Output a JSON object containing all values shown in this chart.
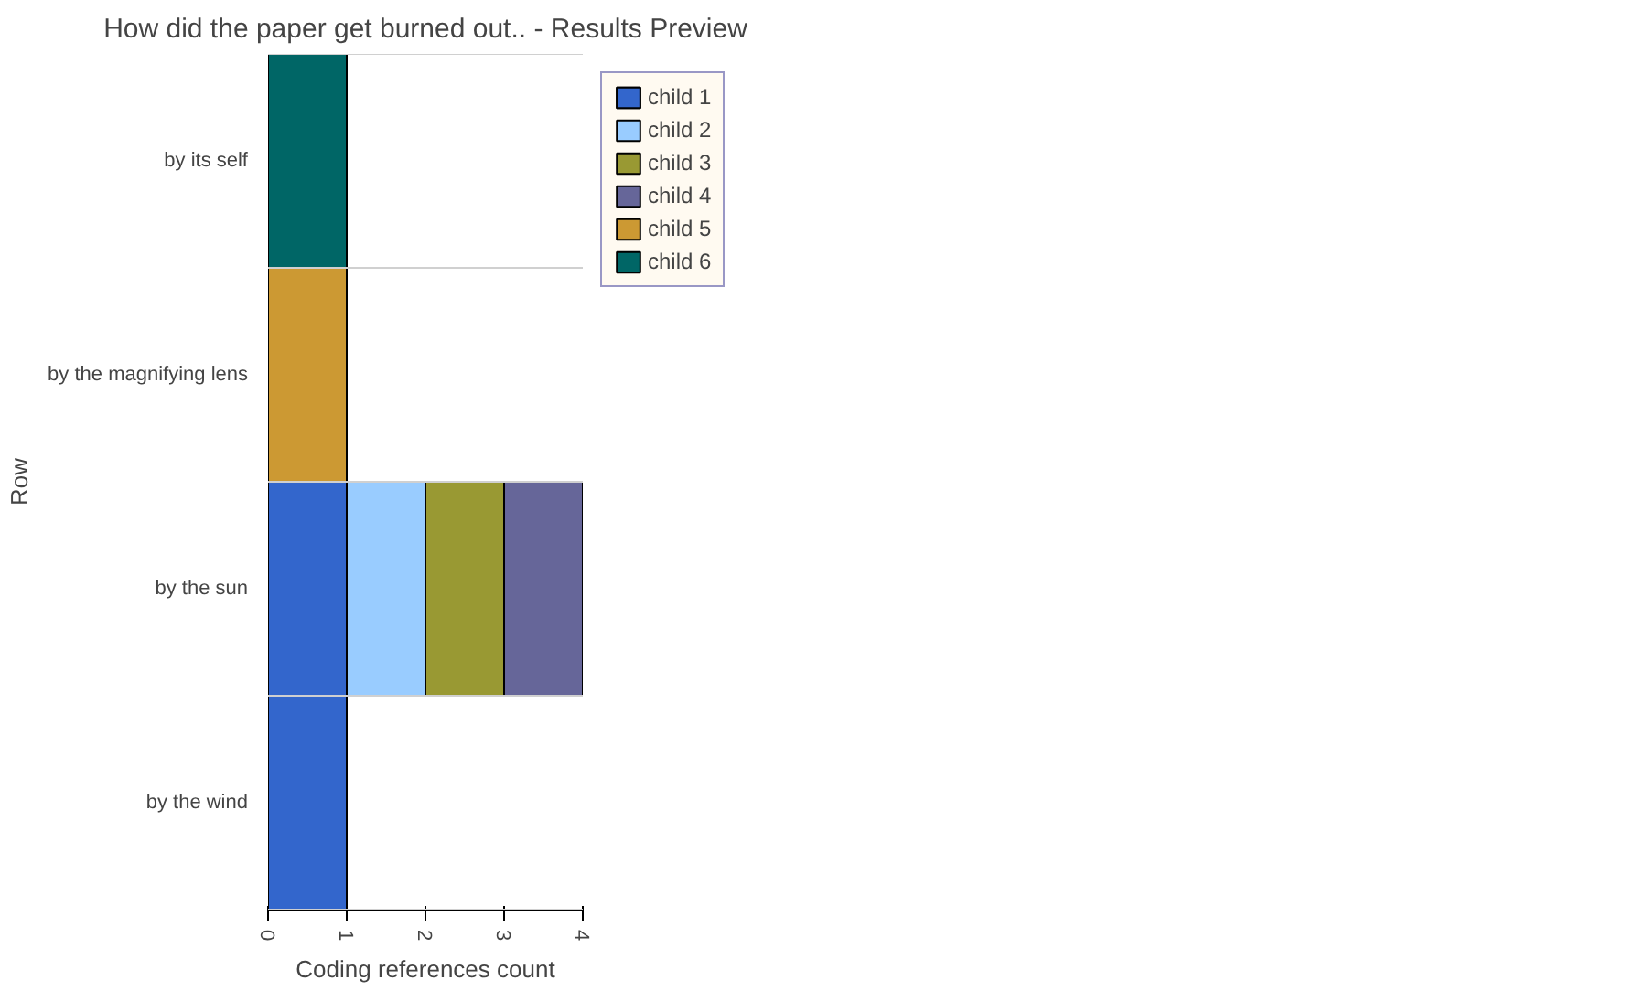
{
  "chart_data": {
    "type": "bar",
    "orientation": "horizontal",
    "stacked": true,
    "title": "How did the paper get burned out.. - Results Preview",
    "xlabel": "Coding references count",
    "ylabel": "Row",
    "categories": [
      "by its self",
      "by the magnifying lens",
      "by the sun",
      "by the wind"
    ],
    "series": [
      {
        "name": "child 1",
        "color": "#3366cc",
        "values": [
          null,
          null,
          1,
          1
        ]
      },
      {
        "name": "child 2",
        "color": "#99ccff",
        "values": [
          null,
          null,
          1,
          null
        ]
      },
      {
        "name": "child 3",
        "color": "#999933",
        "values": [
          null,
          null,
          1,
          null
        ]
      },
      {
        "name": "child 4",
        "color": "#666699",
        "values": [
          null,
          null,
          1,
          null
        ]
      },
      {
        "name": "child 5",
        "color": "#cc9933",
        "values": [
          null,
          1,
          null,
          null
        ]
      },
      {
        "name": "child 6",
        "color": "#006666",
        "values": [
          1,
          null,
          null,
          null
        ]
      }
    ],
    "xlim": [
      0,
      4
    ],
    "xticks": [
      0,
      1,
      2,
      3,
      4
    ],
    "grid": "y",
    "legend": "right"
  }
}
